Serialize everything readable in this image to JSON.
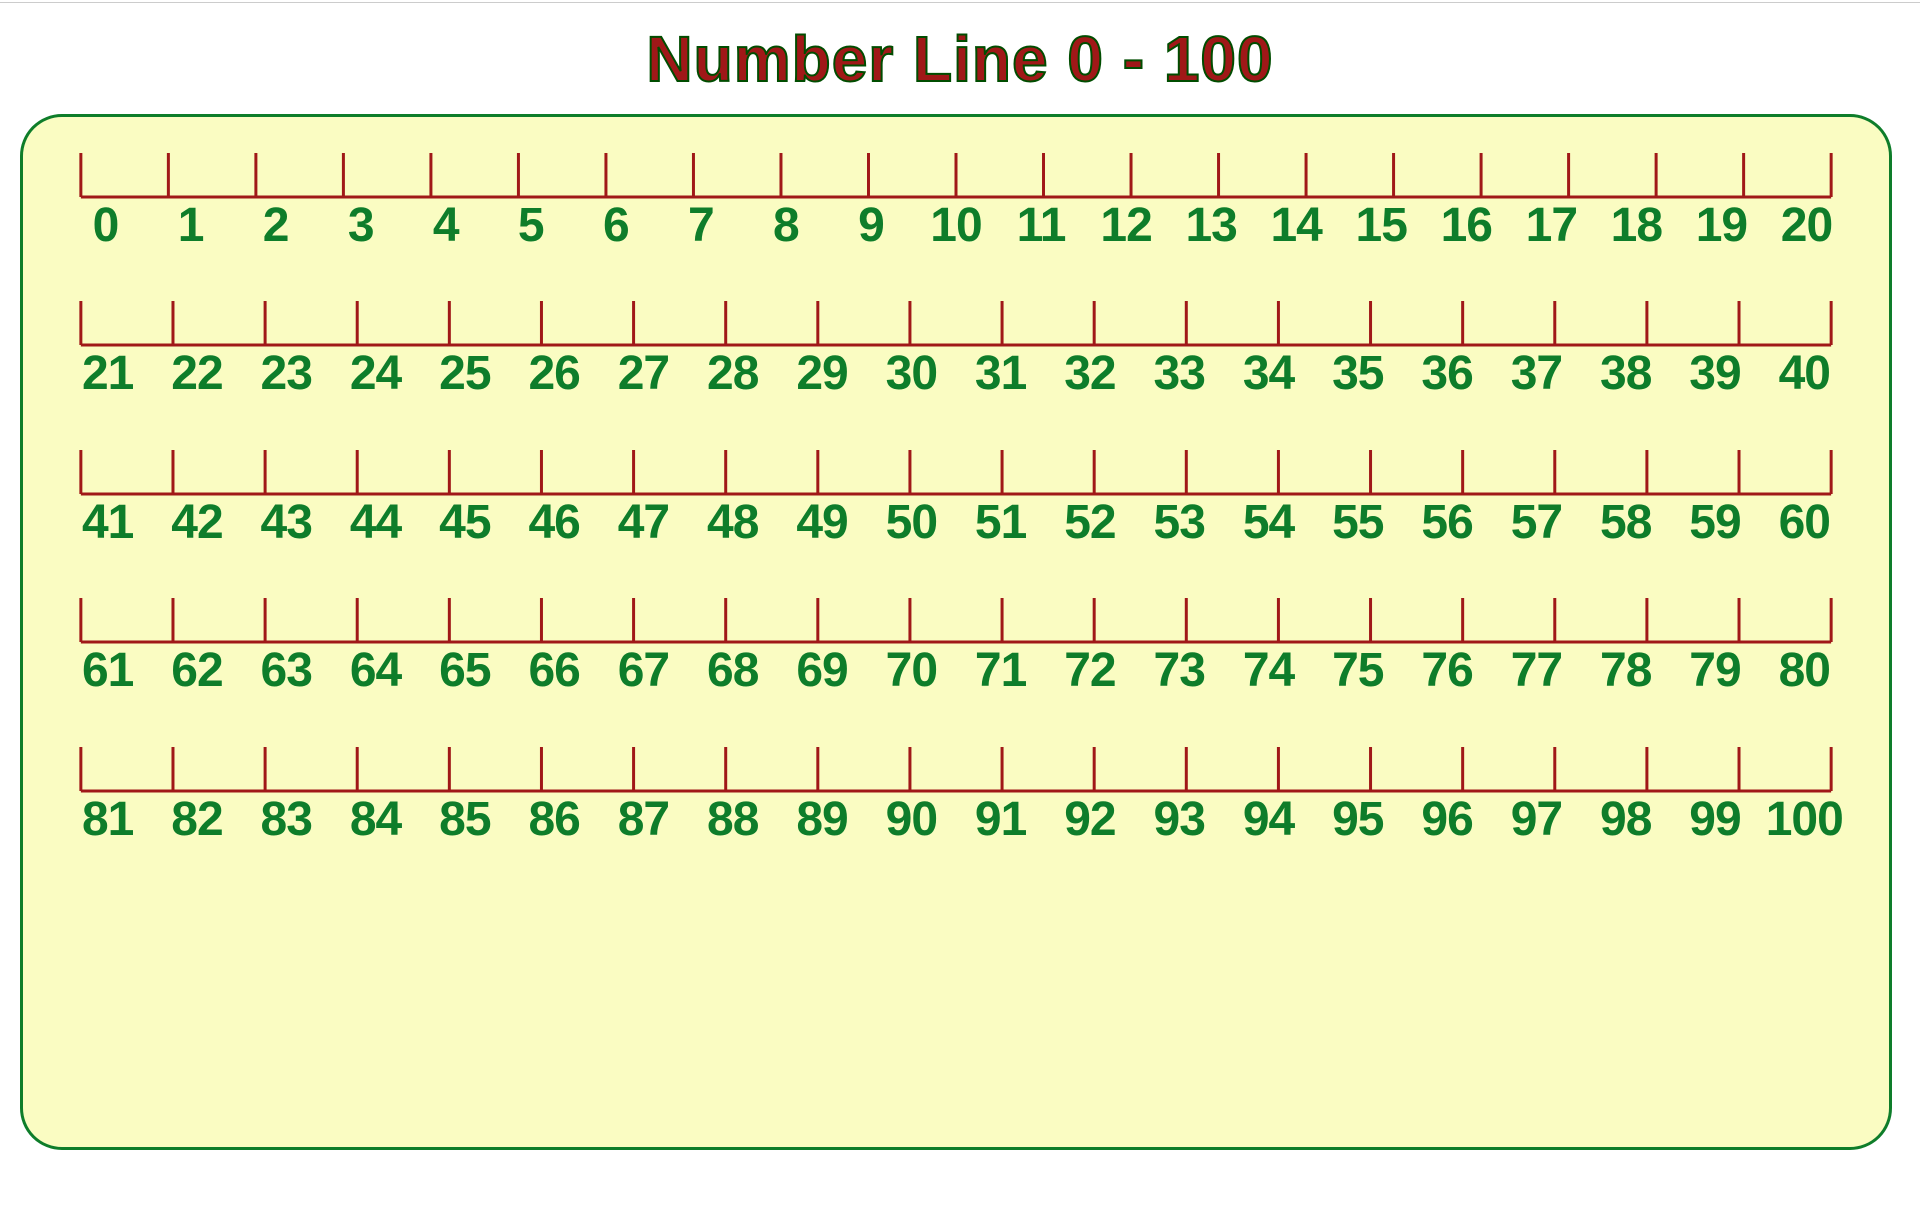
{
  "title": "Number Line 0 - 100",
  "style": {
    "title_color": "#a01818",
    "title_outline": "#004d00",
    "title_fontsize": 64,
    "card_bg": "#fafcc2",
    "card_border": "#0e7d2a",
    "card_radius": 42,
    "line_color": "#a01818",
    "line_width": 3,
    "tick_height": 44,
    "number_color": "#0e7d2a",
    "number_fontsize": 48,
    "page_bg": "#ffffff"
  },
  "rows": [
    {
      "start": 0,
      "end": 20,
      "count": 21
    },
    {
      "start": 21,
      "end": 40,
      "count": 20
    },
    {
      "start": 41,
      "end": 60,
      "count": 20
    },
    {
      "start": 61,
      "end": 80,
      "count": 20
    },
    {
      "start": 81,
      "end": 100,
      "count": 20
    }
  ]
}
